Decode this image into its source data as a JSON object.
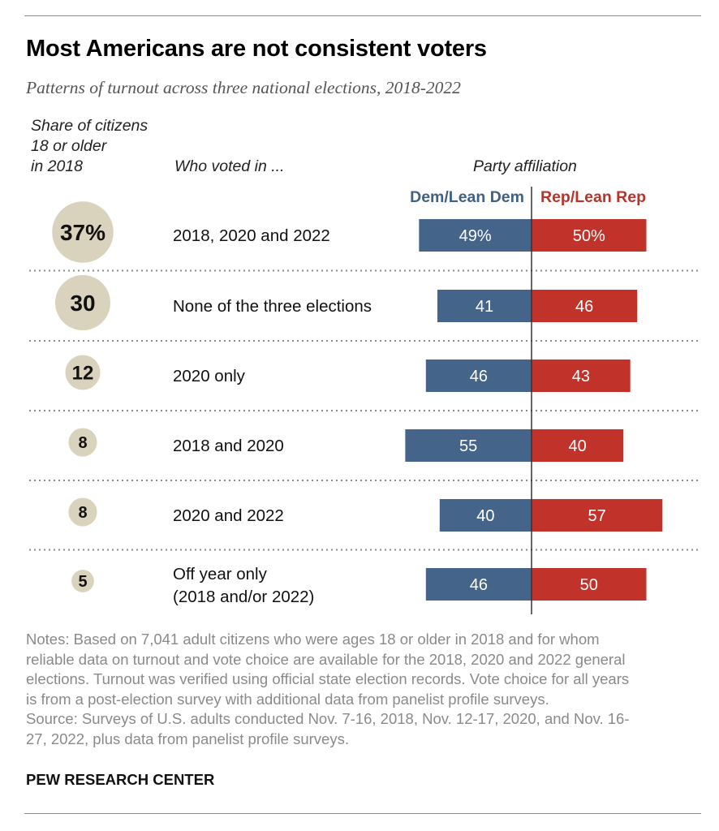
{
  "title": "Most Americans are not consistent voters",
  "subtitle": "Patterns of turnout across three national elections, 2018-2022",
  "headers": {
    "share": [
      "Share of citizens",
      "18 or older",
      "in 2018"
    ],
    "voted_in": "Who voted in ...",
    "party": "Party affiliation"
  },
  "legend": {
    "dem": "Dem/Lean Dem",
    "rep": "Rep/Lean Rep"
  },
  "colors": {
    "dem": "#44648a",
    "rep": "#c1322a",
    "bubble": "#d9d3bd",
    "divider": "#333333"
  },
  "chart_data": {
    "type": "bar",
    "categories": [
      [
        "2018, 2020 and 2022"
      ],
      [
        "None of the three elections"
      ],
      [
        "2020 only"
      ],
      [
        "2018 and 2020"
      ],
      [
        "2020 and 2022"
      ],
      [
        "Off year only",
        "(2018 and/or 2022)"
      ]
    ],
    "share": [
      37,
      30,
      12,
      8,
      8,
      5
    ],
    "share_labels": [
      "37%",
      "30",
      "12",
      "8",
      "8",
      "5"
    ],
    "series": [
      {
        "name": "Dem/Lean Dem",
        "values": [
          49,
          41,
          46,
          55,
          40,
          46
        ],
        "labels": [
          "49%",
          "41",
          "46",
          "55",
          "40",
          "46"
        ]
      },
      {
        "name": "Rep/Lean Rep",
        "values": [
          50,
          46,
          43,
          40,
          57,
          50
        ],
        "labels": [
          "50%",
          "46",
          "43",
          "40",
          "57",
          "50"
        ]
      }
    ]
  },
  "notes": [
    "Notes: Based on 7,041 adult citizens who were ages 18 or older in 2018 and for whom",
    "reliable data on turnout and vote choice are available for the 2018, 2020 and 2022 general",
    "elections. Turnout was verified using official state election records. Vote choice for all years",
    "is from a post-election survey with additional data from panelist profile surveys.",
    "Source: Surveys of U.S. adults conducted Nov. 7-16, 2018, Nov. 12-17, 2020, and Nov. 16-",
    "27, 2022, plus data from panelist profile surveys."
  ],
  "source_brand": "PEW RESEARCH CENTER"
}
